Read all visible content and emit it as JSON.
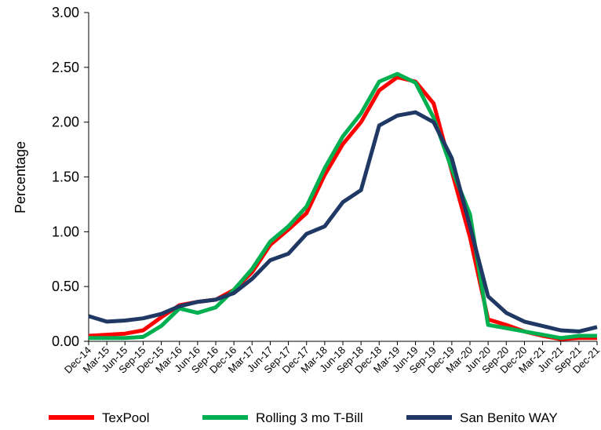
{
  "chart_data": {
    "type": "line",
    "title": "",
    "xlabel": "",
    "ylabel": "Percentage",
    "ylim": [
      0,
      3
    ],
    "yticks": [
      "0.00",
      "0.50",
      "1.00",
      "1.50",
      "2.00",
      "2.50",
      "3.00"
    ],
    "grid": false,
    "legend_position": "bottom",
    "categories": [
      "Dec-14",
      "Mar-15",
      "Jun-15",
      "Sep-15",
      "Dec-15",
      "Mar-16",
      "Jun-16",
      "Sep-16",
      "Dec-16",
      "Mar-17",
      "Jun-17",
      "Sep-17",
      "Dec-17",
      "Mar-18",
      "Jun-18",
      "Sep-18",
      "Dec-18",
      "Mar-19",
      "Jun-19",
      "Sep-19",
      "Dec-19",
      "Mar-20",
      "Jun-20",
      "Sep-20",
      "Dec-20",
      "Mar-21",
      "Jun-21",
      "Sep-21",
      "Dec-21"
    ],
    "series": [
      {
        "name": "TexPool",
        "color": "#ff0000",
        "values": [
          0.05,
          0.06,
          0.07,
          0.1,
          0.22,
          0.33,
          0.36,
          0.38,
          0.47,
          0.63,
          0.88,
          1.02,
          1.17,
          1.52,
          1.8,
          2.0,
          2.29,
          2.41,
          2.37,
          2.17,
          1.55,
          0.95,
          0.2,
          0.15,
          0.09,
          0.05,
          0.02,
          0.03,
          0.03
        ]
      },
      {
        "name": "Rolling 3 mo T-Bill",
        "color": "#00b050",
        "values": [
          0.03,
          0.03,
          0.03,
          0.04,
          0.14,
          0.3,
          0.26,
          0.31,
          0.47,
          0.66,
          0.91,
          1.05,
          1.23,
          1.58,
          1.87,
          2.08,
          2.37,
          2.44,
          2.36,
          2.04,
          1.57,
          1.16,
          0.15,
          0.12,
          0.09,
          0.06,
          0.03,
          0.05,
          0.05
        ]
      },
      {
        "name": "San Benito WAY",
        "color": "#1f3864",
        "values": [
          0.23,
          0.18,
          0.19,
          0.21,
          0.25,
          0.32,
          0.36,
          0.38,
          0.44,
          0.57,
          0.74,
          0.8,
          0.98,
          1.05,
          1.27,
          1.38,
          1.97,
          2.06,
          2.09,
          2.0,
          1.67,
          1.05,
          0.41,
          0.26,
          0.18,
          0.14,
          0.1,
          0.09,
          0.13
        ]
      }
    ]
  }
}
